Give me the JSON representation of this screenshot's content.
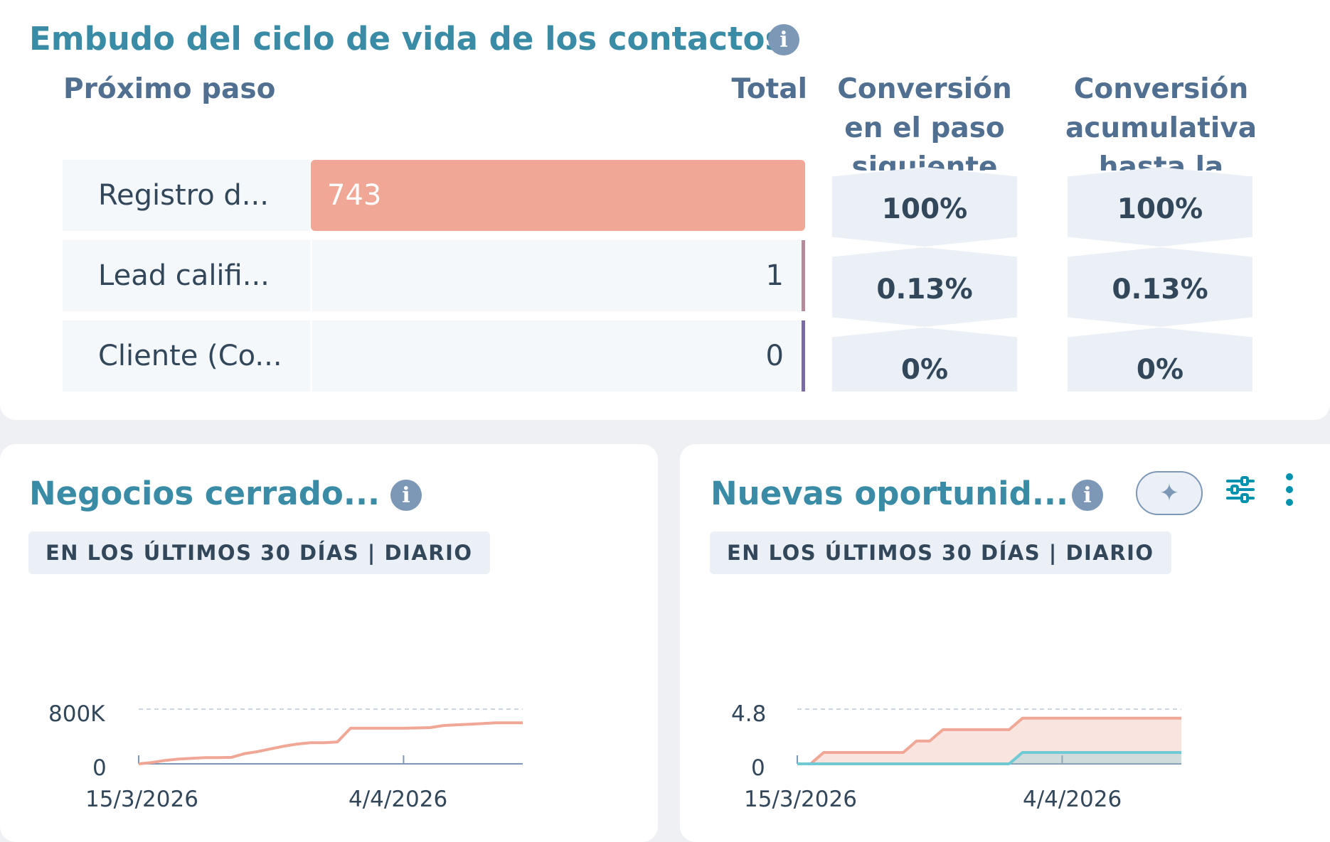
{
  "funnel": {
    "title": "Embudo del ciclo de vida de los contactos",
    "headers": {
      "next_step": "Próximo paso",
      "total": "Total",
      "step_conversion": "Conversión en el paso siguiente",
      "cumulative_conversion": "Conversión acumulativa hasta la"
    },
    "rows": [
      {
        "label": "Registro d...",
        "total": "743",
        "step": "100%",
        "cumulative": "100%"
      },
      {
        "label": "Lead califi...",
        "total": "1",
        "step": "0.13%",
        "cumulative": "0.13%"
      },
      {
        "label": "Cliente (Co...",
        "total": "0",
        "step": "0%",
        "cumulative": "0%"
      }
    ]
  },
  "closed_deals": {
    "title": "Negocios cerrado...",
    "badge": "EN LOS ÚLTIMOS 30 DÍAS | DIARIO",
    "y_ticks": [
      "800K",
      "0"
    ],
    "x_ticks": [
      "15/3/2026",
      "4/4/2026"
    ]
  },
  "new_opps": {
    "title": "Nuevas oportunid...",
    "badge": "EN LOS ÚLTIMOS 30 DÍAS | DIARIO",
    "y_ticks": [
      "4.8",
      "0"
    ],
    "x_ticks": [
      "15/3/2026",
      "4/4/2026"
    ],
    "icons": [
      "sparkle-icon",
      "sliders-icon",
      "more-vertical-icon"
    ]
  },
  "colors": {
    "title": "#3a8ba6",
    "bar": "#f0a795",
    "series_orange": "#f0a795",
    "series_teal": "#6fcad3",
    "edge_row2": "#b78a97",
    "edge_row3": "#7a6aa6"
  },
  "chart_data": [
    {
      "type": "line",
      "x": [
        "15/3/2026",
        "16/3/2026",
        "17/3/2026",
        "18/3/2026",
        "19/3/2026",
        "20/3/2026",
        "21/3/2026",
        "22/3/2026",
        "23/3/2026",
        "24/3/2026",
        "25/3/2026",
        "26/3/2026",
        "27/3/2026",
        "28/3/2026",
        "29/3/2026",
        "30/3/2026",
        "31/3/2026",
        "1/4/2026",
        "2/4/2026",
        "3/4/2026",
        "4/4/2026",
        "5/4/2026",
        "6/4/2026",
        "7/4/2026",
        "8/4/2026",
        "9/4/2026",
        "10/4/2026",
        "11/4/2026",
        "12/4/2026",
        "13/4/2026"
      ],
      "series": [
        {
          "values": [
            0,
            20000,
            50000,
            70000,
            80000,
            90000,
            90000,
            95000,
            150000,
            180000,
            220000,
            260000,
            290000,
            310000,
            310000,
            320000,
            520000,
            520000,
            520000,
            520000,
            520000,
            525000,
            530000,
            560000,
            570000,
            580000,
            590000,
            600000,
            600000,
            600000
          ]
        }
      ],
      "ylim": [
        0,
        800000
      ],
      "y_ticks": [
        "800K",
        "0"
      ],
      "x_ticks": [
        "15/3/2026",
        "4/4/2026"
      ],
      "grid": true
    },
    {
      "type": "area",
      "x": [
        "15/3/2026",
        "16/3/2026",
        "17/3/2026",
        "18/3/2026",
        "19/3/2026",
        "20/3/2026",
        "21/3/2026",
        "22/3/2026",
        "23/3/2026",
        "24/3/2026",
        "25/3/2026",
        "26/3/2026",
        "27/3/2026",
        "28/3/2026",
        "29/3/2026",
        "30/3/2026",
        "31/3/2026",
        "1/4/2026",
        "2/4/2026",
        "3/4/2026",
        "4/4/2026",
        "5/4/2026",
        "6/4/2026",
        "7/4/2026",
        "8/4/2026",
        "9/4/2026",
        "10/4/2026",
        "11/4/2026",
        "12/4/2026",
        "13/4/2026"
      ],
      "series": [
        {
          "values": [
            0,
            0,
            1,
            1,
            1,
            1,
            1,
            1,
            1,
            2,
            2,
            3,
            3,
            3,
            3,
            3,
            3,
            4,
            4,
            4,
            4,
            4,
            4,
            4,
            4,
            4,
            4,
            4,
            4,
            4
          ]
        },
        {
          "values": [
            0,
            0,
            0,
            0,
            0,
            0,
            0,
            0,
            0,
            0,
            0,
            0,
            0,
            0,
            0,
            0,
            0,
            1,
            1,
            1,
            1,
            1,
            1,
            1,
            1,
            1,
            1,
            1,
            1,
            1
          ]
        }
      ],
      "ylim": [
        0,
        4.8
      ],
      "y_ticks": [
        "4.8",
        "0"
      ],
      "x_ticks": [
        "15/3/2026",
        "4/4/2026"
      ],
      "grid": true
    }
  ]
}
